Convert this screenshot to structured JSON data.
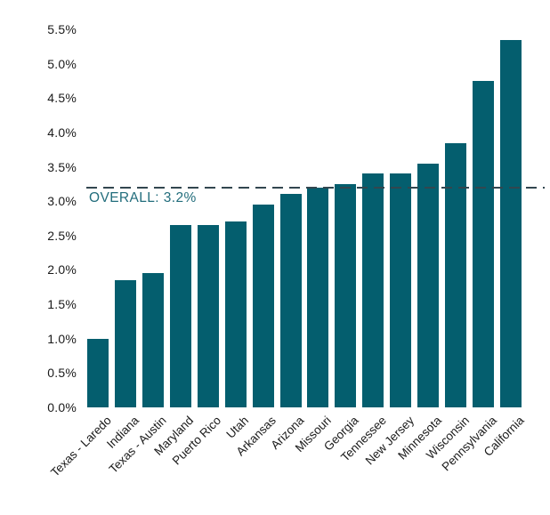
{
  "chart_data": {
    "type": "bar",
    "title": "",
    "xlabel": "",
    "ylabel": "",
    "categories": [
      "Texas - Laredo",
      "Indiana",
      "Texas - Austin",
      "Maryland",
      "Puerto Rico",
      "Utah",
      "Arkansas",
      "Arizona",
      "Missouri",
      "Georgia",
      "Tennessee",
      "New Jersey",
      "Minnesota",
      "Wisconsin",
      "Pennsylvania",
      "California"
    ],
    "values": [
      1.0,
      1.85,
      1.95,
      2.65,
      2.65,
      2.7,
      2.95,
      3.1,
      3.2,
      3.25,
      3.4,
      3.4,
      3.55,
      3.85,
      4.75,
      5.35
    ],
    "unit": "%",
    "ylim": [
      0,
      5.5
    ],
    "ytick_step": 0.5,
    "ytick_labels": [
      "0.0%",
      "0.5%",
      "1.0%",
      "1.5%",
      "2.0%",
      "2.5%",
      "3.0%",
      "3.5%",
      "4.0%",
      "4.5%",
      "5.0%",
      "5.5%"
    ],
    "reference_line": {
      "value": 3.2,
      "label": "OVERALL: 3.2%",
      "style": "dashed"
    },
    "grid": false,
    "legend": false,
    "colors": {
      "bar": "#045e6e",
      "reference_line": "#32464f",
      "reference_label": "#226d7c",
      "axis_text": "#1a1a1a",
      "background": "#ffffff"
    }
  }
}
